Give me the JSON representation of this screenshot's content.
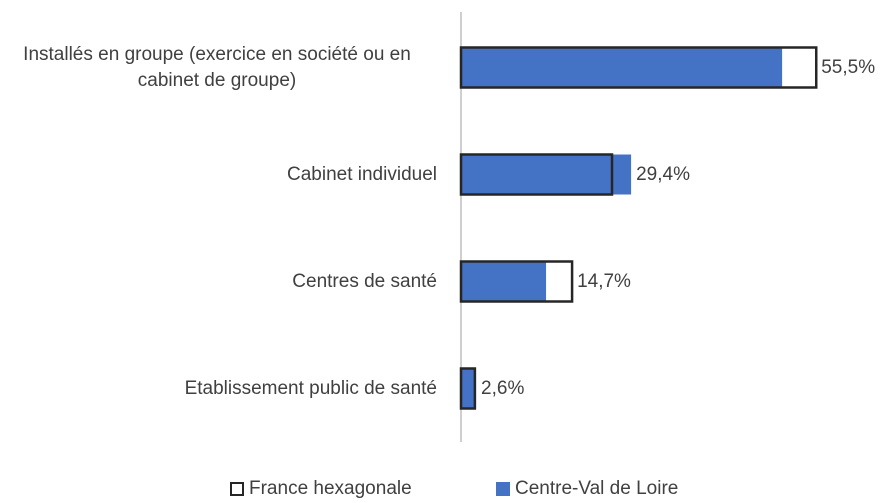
{
  "chart_data": {
    "type": "bar",
    "orientation": "horizontal",
    "categories": [
      "Installés en groupe (exercice en société ou en cabinet de groupe)",
      "Cabinet individuel",
      "Centres de santé",
      "Etablissement public de santé"
    ],
    "series": [
      {
        "name": "France hexagonale",
        "color": "#ffffff",
        "edge_color": "#262626",
        "values": [
          61.4,
          26.1,
          19.2,
          2.4
        ]
      },
      {
        "name": "Centre-Val de Loire",
        "color": "#4472c4",
        "values": [
          55.5,
          29.4,
          14.7,
          2.6
        ],
        "value_labels": [
          "55,5%",
          "29,4%",
          "14,7%",
          "2,6%"
        ]
      }
    ],
    "xlim": [
      0,
      70
    ],
    "legend": "bottom"
  }
}
